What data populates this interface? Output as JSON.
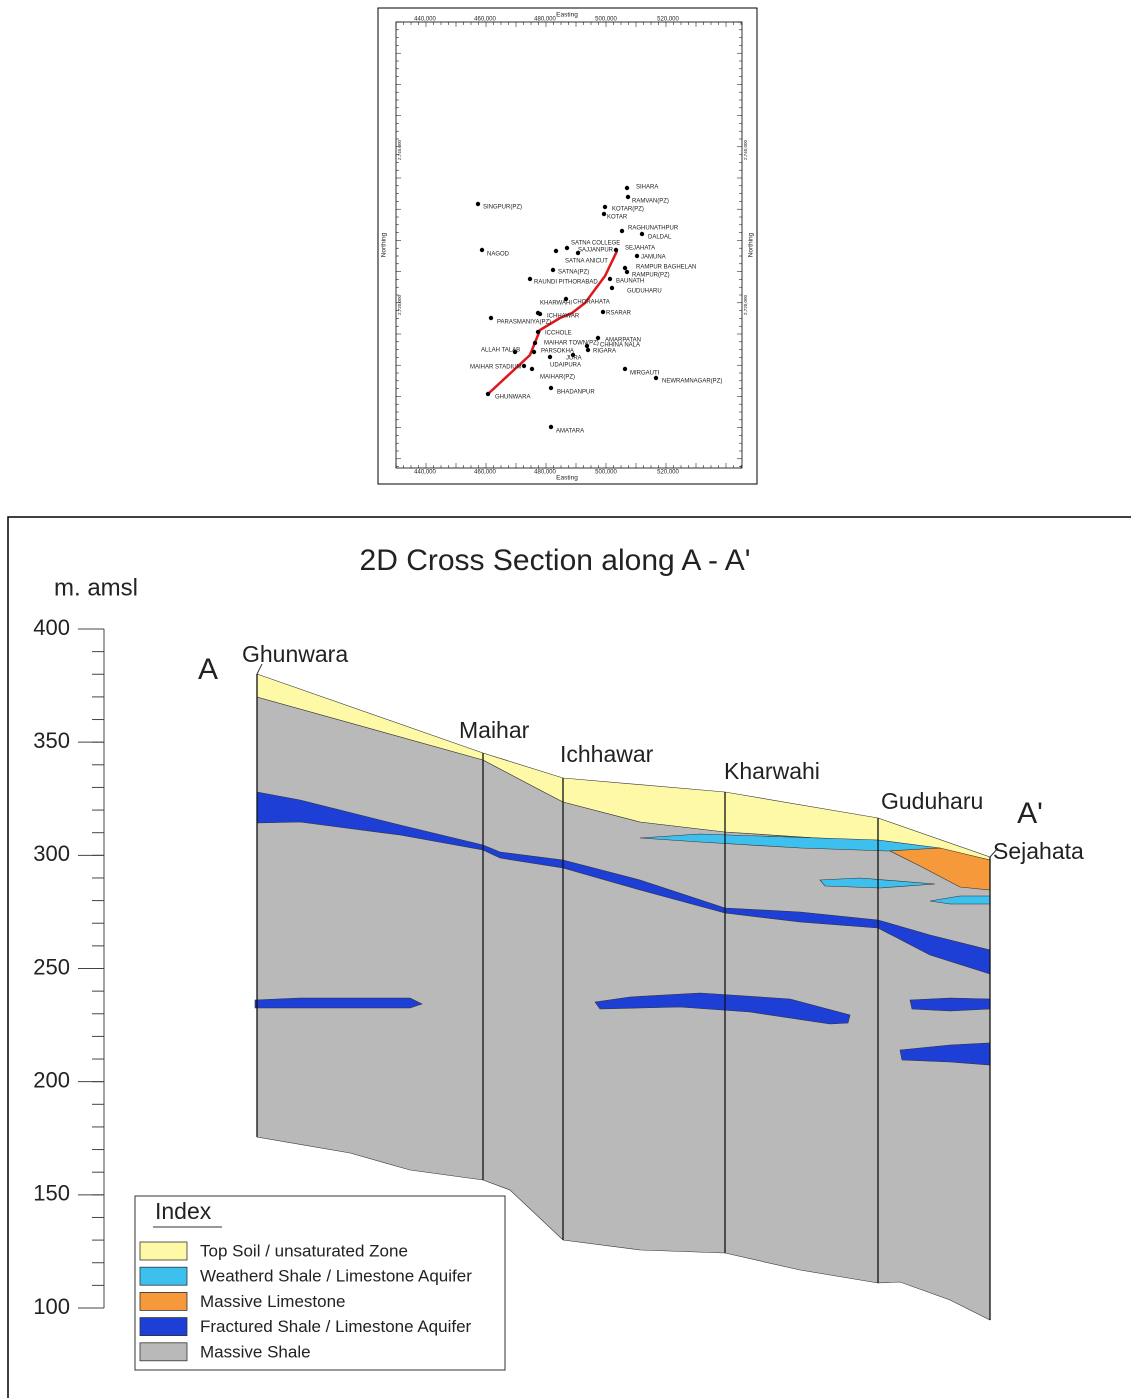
{
  "map": {
    "axis_titles": {
      "x_top": "Easting",
      "x_bottom": "Easting",
      "y_left": "Northing",
      "y_right": "Northing"
    },
    "x_tick_labels": [
      "440,000",
      "460,000",
      "480,000",
      "500,000",
      "520,000"
    ],
    "y_tick_labels": [
      "2,740,000",
      "2,720,000"
    ],
    "stations": [
      "SIHARA",
      "RAMVAN(PZ)",
      "KOTAR(PZ)",
      "KOTAR",
      "RAGHUNATHPUR",
      "DALDAL",
      "SINGPUR(PZ)",
      "SATNA COLLEGE",
      "SAJJANPUR",
      "SEJAHATA",
      "JAMUNA",
      "SATNA ANICUT",
      "NAGOD",
      "RAMPUR BAGHELAN",
      "SATNA(PZ)",
      "RAMPUR(PZ)",
      "BAUNATH",
      "RAUNDI PITHORABAD",
      "GUDUHARU",
      "KHARWAHI",
      "CHORAHATA",
      "ICHHAWAR",
      "RSARAR",
      "PARASMANIYA(PZ)",
      "ICCHOLE",
      "AMARPATAN",
      "MAIHAR TOWN(PZ)",
      "CHHINA NALA",
      "ALLAH TALAB",
      "PARSOKHA",
      "RIGARA",
      "JURA",
      "UDAIPURA",
      "MAIHAR STADIUM",
      "MIRGAUTI",
      "MAIHAR(PZ)",
      "NEWRAMNAGAR(PZ)",
      "GHUNWARA",
      "BHADANPUR",
      "AMATARA"
    ]
  },
  "cross_section": {
    "title": "2D Cross Section along  A - A'",
    "y_axis_label": "m. amsl",
    "ylim": [
      100,
      400
    ],
    "yticks": [
      100,
      150,
      200,
      250,
      300,
      350,
      400
    ],
    "end_labels": [
      "A",
      "A'"
    ],
    "stations": [
      "Ghunwara",
      "Maihar",
      "Ichhawar",
      "Kharwahi",
      "Guduharu",
      "Sejahata"
    ],
    "legend": {
      "title": "Index",
      "items": [
        {
          "label": "Top Soil / unsaturated Zone",
          "color": "#fdf9a6"
        },
        {
          "label": "Weatherd Shale / Limestone Aquifer",
          "color": "#3ec0ee"
        },
        {
          "label": "Massive Limestone",
          "color": "#f5993a"
        },
        {
          "label": "Fractured Shale / Limestone Aquifer",
          "color": "#1d3fd6"
        },
        {
          "label": "Massive Shale",
          "color": "#b9b9b9"
        }
      ]
    }
  }
}
